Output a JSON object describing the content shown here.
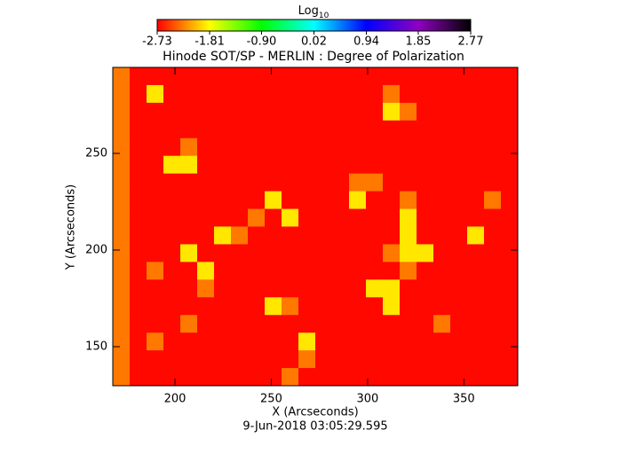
{
  "chart_data": {
    "type": "heatmap",
    "title": "Hinode SOT/SP - MERLIN : Degree of Polarization",
    "x_label": "X (Arcseconds)",
    "y_label": "Y (Arcseconds)",
    "footer": "9-Jun-2018 03:05:29.595",
    "colorbar_label": {
      "base": "Log",
      "sub": "10"
    },
    "colormap": [
      "#ff0000",
      "#ffff00",
      "#00ff00",
      "#00ffff",
      "#0000ff",
      "#9000c0",
      "#000000"
    ],
    "clim": [
      -2.73,
      2.77
    ],
    "cticks": [
      {
        "value": -2.73,
        "label": "-2.73"
      },
      {
        "value": -1.81,
        "label": "-1.81"
      },
      {
        "value": -0.9,
        "label": "-0.90"
      },
      {
        "value": 0.02,
        "label": "0.02"
      },
      {
        "value": 0.94,
        "label": "0.94"
      },
      {
        "value": 1.85,
        "label": "1.85"
      },
      {
        "value": 2.77,
        "label": "2.77"
      }
    ],
    "xlim": [
      167.7,
      378
    ],
    "ylim": [
      129.8,
      294.5
    ],
    "xticks": [
      200,
      250,
      300,
      350
    ],
    "yticks": [
      150,
      200,
      250
    ],
    "z": [
      [
        -2.3,
        -2.7,
        -2.7,
        -2.7,
        -2.7,
        -2.7,
        -2.7,
        -2.7,
        -2.7,
        -2.7,
        -2.7,
        -2.7,
        -2.7,
        -2.7,
        -2.7,
        -2.7,
        -2.7,
        -2.7,
        -2.7,
        -2.7,
        -2.7,
        -2.7,
        -2.7,
        -2.7
      ],
      [
        -2.3,
        -2.7,
        -1.9,
        -2.7,
        -2.7,
        -2.7,
        -2.7,
        -2.7,
        -2.7,
        -2.7,
        -2.7,
        -2.7,
        -2.7,
        -2.7,
        -2.7,
        -2.7,
        -2.3,
        -2.7,
        -2.7,
        -2.7,
        -2.7,
        -2.7,
        -2.7,
        -2.7
      ],
      [
        -2.3,
        -2.7,
        -2.7,
        -2.7,
        -2.7,
        -2.7,
        -2.7,
        -2.7,
        -2.7,
        -2.7,
        -2.7,
        -2.7,
        -2.7,
        -2.7,
        -2.7,
        -2.7,
        -1.9,
        -2.3,
        -2.7,
        -2.7,
        -2.7,
        -2.7,
        -2.7,
        -2.7
      ],
      [
        -2.3,
        -2.7,
        -2.7,
        -2.7,
        -2.7,
        -2.7,
        -2.7,
        -2.7,
        -2.7,
        -2.7,
        -2.7,
        -2.7,
        -2.7,
        -2.7,
        -2.7,
        -2.7,
        -2.7,
        -2.7,
        -2.7,
        -2.7,
        -2.7,
        -2.7,
        -2.7,
        -2.7
      ],
      [
        -2.3,
        -2.7,
        -2.7,
        -2.7,
        -2.3,
        -2.7,
        -2.7,
        -2.7,
        -2.7,
        -2.7,
        -2.7,
        -2.7,
        -2.7,
        -2.7,
        -2.7,
        -2.7,
        -2.7,
        -2.7,
        -2.7,
        -2.7,
        -2.7,
        -2.7,
        -2.7,
        -2.7
      ],
      [
        -2.3,
        -2.7,
        -2.7,
        -1.9,
        -1.9,
        -2.7,
        -2.7,
        -2.7,
        -2.7,
        -2.7,
        -2.7,
        -2.7,
        -2.7,
        -2.7,
        -2.7,
        -2.7,
        -2.7,
        -2.7,
        -2.7,
        -2.7,
        -2.7,
        -2.7,
        -2.7,
        -2.7
      ],
      [
        -2.3,
        -2.7,
        -2.7,
        -2.7,
        -2.7,
        -2.7,
        -2.7,
        -2.7,
        -2.7,
        -2.7,
        -2.7,
        -2.7,
        -2.7,
        -2.7,
        -2.3,
        -2.3,
        -2.7,
        -2.7,
        -2.7,
        -2.7,
        -2.7,
        -2.7,
        -2.7,
        -2.7
      ],
      [
        -2.3,
        -2.7,
        -2.7,
        -2.7,
        -2.7,
        -2.7,
        -2.7,
        -2.7,
        -2.7,
        -1.9,
        -2.7,
        -2.7,
        -2.7,
        -2.7,
        -1.9,
        -2.7,
        -2.7,
        -2.3,
        -2.7,
        -2.7,
        -2.7,
        -2.7,
        -2.3,
        -2.7
      ],
      [
        -2.3,
        -2.7,
        -2.7,
        -2.7,
        -2.7,
        -2.7,
        -2.7,
        -2.7,
        -2.3,
        -2.7,
        -1.9,
        -2.7,
        -2.7,
        -2.7,
        -2.7,
        -2.7,
        -2.7,
        -1.9,
        -2.7,
        -2.7,
        -2.7,
        -2.7,
        -2.7,
        -2.7
      ],
      [
        -2.3,
        -2.7,
        -2.7,
        -2.7,
        -2.7,
        -2.7,
        -1.9,
        -2.3,
        -2.7,
        -2.7,
        -2.7,
        -2.7,
        -2.7,
        -2.7,
        -2.7,
        -2.7,
        -2.7,
        -1.9,
        -2.7,
        -2.7,
        -2.7,
        -1.9,
        -2.7,
        -2.7
      ],
      [
        -2.3,
        -2.7,
        -2.7,
        -2.7,
        -1.9,
        -2.7,
        -2.7,
        -2.7,
        -2.7,
        -2.7,
        -2.7,
        -2.7,
        -2.7,
        -2.7,
        -2.7,
        -2.7,
        -2.3,
        -1.9,
        -1.9,
        -2.7,
        -2.7,
        -2.7,
        -2.7,
        -2.7
      ],
      [
        -2.3,
        -2.7,
        -2.3,
        -2.7,
        -2.7,
        -1.9,
        -2.7,
        -2.7,
        -2.7,
        -2.7,
        -2.7,
        -2.7,
        -2.7,
        -2.7,
        -2.7,
        -2.7,
        -2.7,
        -2.3,
        -2.7,
        -2.7,
        -2.7,
        -2.7,
        -2.7,
        -2.7
      ],
      [
        -2.3,
        -2.7,
        -2.7,
        -2.7,
        -2.7,
        -2.3,
        -2.7,
        -2.7,
        -2.7,
        -2.7,
        -2.7,
        -2.7,
        -2.7,
        -2.7,
        -2.7,
        -1.9,
        -1.9,
        -2.7,
        -2.7,
        -2.7,
        -2.7,
        -2.7,
        -2.7,
        -2.7
      ],
      [
        -2.3,
        -2.7,
        -2.7,
        -2.7,
        -2.7,
        -2.7,
        -2.7,
        -2.7,
        -2.7,
        -1.9,
        -2.3,
        -2.7,
        -2.7,
        -2.7,
        -2.7,
        -2.7,
        -1.9,
        -2.7,
        -2.7,
        -2.7,
        -2.7,
        -2.7,
        -2.7,
        -2.7
      ],
      [
        -2.3,
        -2.7,
        -2.7,
        -2.7,
        -2.3,
        -2.7,
        -2.7,
        -2.7,
        -2.7,
        -2.7,
        -2.7,
        -2.7,
        -2.7,
        -2.7,
        -2.7,
        -2.7,
        -2.7,
        -2.7,
        -2.7,
        -2.3,
        -2.7,
        -2.7,
        -2.7,
        -2.7
      ],
      [
        -2.3,
        -2.7,
        -2.3,
        -2.7,
        -2.7,
        -2.7,
        -2.7,
        -2.7,
        -2.7,
        -2.7,
        -2.7,
        -1.9,
        -2.7,
        -2.7,
        -2.7,
        -2.7,
        -2.7,
        -2.7,
        -2.7,
        -2.7,
        -2.7,
        -2.7,
        -2.7,
        -2.7
      ],
      [
        -2.3,
        -2.7,
        -2.7,
        -2.7,
        -2.7,
        -2.7,
        -2.7,
        -2.7,
        -2.7,
        -2.7,
        -2.7,
        -2.3,
        -2.7,
        -2.7,
        -2.7,
        -2.7,
        -2.7,
        -2.7,
        -2.7,
        -2.7,
        -2.7,
        -2.7,
        -2.7,
        -2.7
      ],
      [
        -2.3,
        -2.7,
        -2.7,
        -2.7,
        -2.7,
        -2.7,
        -2.7,
        -2.7,
        -2.7,
        -2.7,
        -2.3,
        -2.7,
        -2.7,
        -2.7,
        -2.7,
        -2.7,
        -2.7,
        -2.7,
        -2.7,
        -2.7,
        -2.7,
        -2.7,
        -2.7,
        -2.7
      ]
    ]
  }
}
